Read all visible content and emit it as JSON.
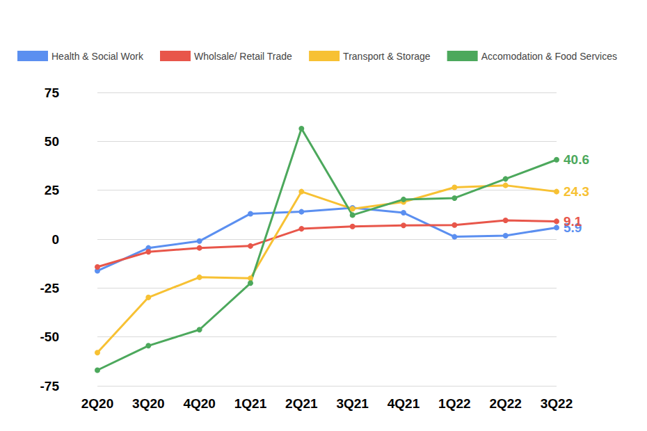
{
  "chart_data": {
    "type": "line",
    "categories": [
      "2Q20",
      "3Q20",
      "4Q20",
      "1Q21",
      "2Q21",
      "3Q21",
      "4Q21",
      "1Q22",
      "2Q22",
      "3Q22"
    ],
    "series": [
      {
        "name": "Health & Social Work",
        "color": "#5B8FF0",
        "values": [
          -16.2,
          -4.5,
          -1,
          13,
          14,
          16,
          13.5,
          1.2,
          1.8,
          5.9
        ],
        "value_labels": [
          null,
          null,
          null,
          null,
          null,
          null,
          null,
          null,
          null,
          "5.9"
        ]
      },
      {
        "name": "Wholsale/ Retail Trade",
        "color": "#E8564A",
        "values": [
          -14.2,
          -6.5,
          -4.5,
          -3.5,
          5.3,
          6.5,
          7,
          7.2,
          9.6,
          9.1
        ],
        "value_labels": [
          null,
          null,
          null,
          null,
          null,
          null,
          null,
          null,
          null,
          "9.1"
        ]
      },
      {
        "name": "Transport & Storage",
        "color": "#F7C133",
        "values": [
          -58,
          -29.8,
          -19.5,
          -20,
          24.3,
          15.5,
          19,
          26.5,
          27.5,
          24.3
        ],
        "value_labels": [
          null,
          null,
          null,
          null,
          null,
          null,
          null,
          null,
          null,
          "24.3"
        ]
      },
      {
        "name": "Accomodation & Food Services",
        "color": "#4CA85C",
        "values": [
          -67,
          -54.5,
          -46.3,
          -22.5,
          56.5,
          12.3,
          20.3,
          21,
          30.8,
          40.6
        ],
        "value_labels": [
          null,
          null,
          null,
          null,
          null,
          null,
          null,
          null,
          null,
          "40.6"
        ]
      }
    ],
    "ylim": [
      -75,
      75
    ],
    "yticks": [
      -75,
      -50,
      -25,
      0,
      25,
      50,
      75
    ],
    "grid": true,
    "legend": "top-left",
    "marker": "circle",
    "line_style": "solid",
    "data_labels": true
  }
}
